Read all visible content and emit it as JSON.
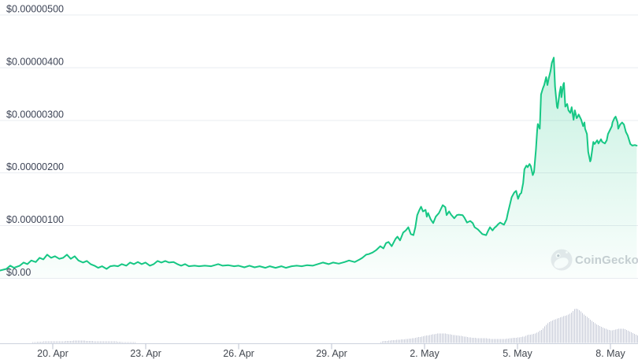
{
  "chart_data": {
    "type": "area",
    "title": "",
    "currency": "USD",
    "price_unit": "micro-USD (value x 1e-6 USD)",
    "legend": "none",
    "grid": "horizontal only",
    "watermark": "CoinGecko",
    "y_axis": {
      "range_micro_usd": [
        0,
        5.28
      ],
      "ticks": [
        {
          "label": "$0.00000500",
          "value": 5.0
        },
        {
          "label": "$0.00000400",
          "value": 4.0
        },
        {
          "label": "$0.00000300",
          "value": 3.0
        },
        {
          "label": "$0.00000200",
          "value": 2.0
        },
        {
          "label": "$0.00000100",
          "value": 1.0
        },
        {
          "label": "$0.00",
          "value": 0.0
        }
      ]
    },
    "x_axis": {
      "note": "t = fraction of visible time window (approx 18 Apr to 9 May)",
      "ticks": [
        {
          "label": "20. Apr",
          "t": 0.0827
        },
        {
          "label": "23. Apr",
          "t": 0.2284
        },
        {
          "label": "26. Apr",
          "t": 0.3741
        },
        {
          "label": "29. Apr",
          "t": 0.5198
        },
        {
          "label": "2. May",
          "t": 0.6654
        },
        {
          "label": "5. May",
          "t": 0.8111
        },
        {
          "label": "8. May",
          "t": 0.9568
        }
      ]
    },
    "series": [
      {
        "name": "Price",
        "type": "line+area",
        "color": "#16c784",
        "points_t_priceMicroUsd": [
          [
            0,
            0.15
          ],
          [
            0.01,
            0.18
          ],
          [
            0.016,
            0.24
          ],
          [
            0.022,
            0.2
          ],
          [
            0.031,
            0.24
          ],
          [
            0.037,
            0.3
          ],
          [
            0.043,
            0.27
          ],
          [
            0.049,
            0.34
          ],
          [
            0.056,
            0.31
          ],
          [
            0.062,
            0.39
          ],
          [
            0.068,
            0.36
          ],
          [
            0.074,
            0.45
          ],
          [
            0.08,
            0.39
          ],
          [
            0.086,
            0.42
          ],
          [
            0.093,
            0.37
          ],
          [
            0.099,
            0.39
          ],
          [
            0.105,
            0.45
          ],
          [
            0.111,
            0.37
          ],
          [
            0.117,
            0.42
          ],
          [
            0.123,
            0.34
          ],
          [
            0.13,
            0.3
          ],
          [
            0.136,
            0.33
          ],
          [
            0.142,
            0.27
          ],
          [
            0.148,
            0.24
          ],
          [
            0.154,
            0.2
          ],
          [
            0.16,
            0.23
          ],
          [
            0.167,
            0.18
          ],
          [
            0.173,
            0.23
          ],
          [
            0.179,
            0.24
          ],
          [
            0.185,
            0.23
          ],
          [
            0.191,
            0.27
          ],
          [
            0.198,
            0.24
          ],
          [
            0.204,
            0.3
          ],
          [
            0.21,
            0.27
          ],
          [
            0.216,
            0.31
          ],
          [
            0.222,
            0.27
          ],
          [
            0.228,
            0.3
          ],
          [
            0.235,
            0.24
          ],
          [
            0.241,
            0.27
          ],
          [
            0.247,
            0.33
          ],
          [
            0.253,
            0.3
          ],
          [
            0.259,
            0.33
          ],
          [
            0.265,
            0.3
          ],
          [
            0.272,
            0.31
          ],
          [
            0.278,
            0.27
          ],
          [
            0.284,
            0.24
          ],
          [
            0.29,
            0.27
          ],
          [
            0.296,
            0.23
          ],
          [
            0.305,
            0.24
          ],
          [
            0.312,
            0.23
          ],
          [
            0.321,
            0.24
          ],
          [
            0.331,
            0.23
          ],
          [
            0.342,
            0.27
          ],
          [
            0.349,
            0.24
          ],
          [
            0.358,
            0.25
          ],
          [
            0.367,
            0.23
          ],
          [
            0.374,
            0.24
          ],
          [
            0.383,
            0.21
          ],
          [
            0.391,
            0.24
          ],
          [
            0.399,
            0.21
          ],
          [
            0.407,
            0.23
          ],
          [
            0.416,
            0.2
          ],
          [
            0.423,
            0.23
          ],
          [
            0.432,
            0.2
          ],
          [
            0.441,
            0.23
          ],
          [
            0.448,
            0.2
          ],
          [
            0.457,
            0.23
          ],
          [
            0.465,
            0.24
          ],
          [
            0.473,
            0.23
          ],
          [
            0.481,
            0.25
          ],
          [
            0.49,
            0.24
          ],
          [
            0.498,
            0.27
          ],
          [
            0.506,
            0.3
          ],
          [
            0.515,
            0.27
          ],
          [
            0.522,
            0.3
          ],
          [
            0.531,
            0.28
          ],
          [
            0.54,
            0.31
          ],
          [
            0.547,
            0.34
          ],
          [
            0.556,
            0.31
          ],
          [
            0.564,
            0.36
          ],
          [
            0.568,
            0.39
          ],
          [
            0.574,
            0.45
          ],
          [
            0.578,
            0.46
          ],
          [
            0.584,
            0.49
          ],
          [
            0.59,
            0.54
          ],
          [
            0.596,
            0.61
          ],
          [
            0.601,
            0.57
          ],
          [
            0.605,
            0.67
          ],
          [
            0.609,
            0.69
          ],
          [
            0.614,
            0.61
          ],
          [
            0.62,
            0.75
          ],
          [
            0.623,
            0.79
          ],
          [
            0.627,
            0.72
          ],
          [
            0.632,
            0.87
          ],
          [
            0.636,
            0.91
          ],
          [
            0.64,
            0.97
          ],
          [
            0.644,
            0.84
          ],
          [
            0.648,
            0.82
          ],
          [
            0.651,
            0.97
          ],
          [
            0.654,
            1.2
          ],
          [
            0.657,
            1.29
          ],
          [
            0.66,
            1.36
          ],
          [
            0.663,
            1.27
          ],
          [
            0.667,
            1.3
          ],
          [
            0.669,
            1.17
          ],
          [
            0.671,
            1.24
          ],
          [
            0.675,
            1.12
          ],
          [
            0.679,
            1.05
          ],
          [
            0.683,
            1.17
          ],
          [
            0.688,
            1.24
          ],
          [
            0.694,
            1.39
          ],
          [
            0.698,
            1.35
          ],
          [
            0.7,
            1.2
          ],
          [
            0.704,
            1.27
          ],
          [
            0.707,
            1.21
          ],
          [
            0.712,
            1.14
          ],
          [
            0.716,
            1.2
          ],
          [
            0.719,
            1.21
          ],
          [
            0.725,
            1.2
          ],
          [
            0.728,
            1.15
          ],
          [
            0.732,
            1.06
          ],
          [
            0.737,
            1.09
          ],
          [
            0.741,
            1.05
          ],
          [
            0.744,
            0.97
          ],
          [
            0.749,
            0.93
          ],
          [
            0.756,
            0.84
          ],
          [
            0.762,
            0.82
          ],
          [
            0.765,
            0.9
          ],
          [
            0.768,
            0.97
          ],
          [
            0.772,
            0.91
          ],
          [
            0.775,
            0.96
          ],
          [
            0.778,
            0.99
          ],
          [
            0.781,
            1.03
          ],
          [
            0.784,
            1.06
          ],
          [
            0.788,
            1.03
          ],
          [
            0.79,
            1.02
          ],
          [
            0.794,
            1.12
          ],
          [
            0.796,
            1.24
          ],
          [
            0.8,
            1.44
          ],
          [
            0.802,
            1.54
          ],
          [
            0.806,
            1.63
          ],
          [
            0.809,
            1.66
          ],
          [
            0.812,
            1.51
          ],
          [
            0.815,
            1.6
          ],
          [
            0.817,
            1.62
          ],
          [
            0.82,
            1.81
          ],
          [
            0.822,
            2.07
          ],
          [
            0.825,
            2.14
          ],
          [
            0.827,
            2.11
          ],
          [
            0.83,
            2.17
          ],
          [
            0.832,
            2.13
          ],
          [
            0.835,
            1.96
          ],
          [
            0.837,
            2.02
          ],
          [
            0.84,
            2.44
          ],
          [
            0.842,
            2.81
          ],
          [
            0.843,
            2.93
          ],
          [
            0.846,
            2.84
          ],
          [
            0.848,
            3.49
          ],
          [
            0.851,
            3.61
          ],
          [
            0.853,
            3.67
          ],
          [
            0.856,
            3.82
          ],
          [
            0.858,
            3.67
          ],
          [
            0.86,
            3.79
          ],
          [
            0.863,
            3.94
          ],
          [
            0.865,
            4.09
          ],
          [
            0.868,
            4.19
          ],
          [
            0.87,
            3.64
          ],
          [
            0.873,
            3.26
          ],
          [
            0.874,
            3.23
          ],
          [
            0.877,
            3.52
          ],
          [
            0.879,
            3.64
          ],
          [
            0.88,
            3.44
          ],
          [
            0.883,
            3.68
          ],
          [
            0.884,
            3.71
          ],
          [
            0.886,
            3.26
          ],
          [
            0.889,
            3.31
          ],
          [
            0.891,
            3.19
          ],
          [
            0.894,
            3.14
          ],
          [
            0.896,
            3.25
          ],
          [
            0.899,
            3.01
          ],
          [
            0.901,
            3.19
          ],
          [
            0.904,
            3.04
          ],
          [
            0.906,
            3.08
          ],
          [
            0.907,
            3.11
          ],
          [
            0.911,
            3.01
          ],
          [
            0.914,
            2.89
          ],
          [
            0.916,
            2.96
          ],
          [
            0.917,
            2.84
          ],
          [
            0.92,
            2.74
          ],
          [
            0.922,
            2.4
          ],
          [
            0.925,
            2.22
          ],
          [
            0.926,
            2.25
          ],
          [
            0.93,
            2.59
          ],
          [
            0.932,
            2.55
          ],
          [
            0.936,
            2.62
          ],
          [
            0.938,
            2.56
          ],
          [
            0.942,
            2.64
          ],
          [
            0.944,
            2.59
          ],
          [
            0.948,
            2.56
          ],
          [
            0.951,
            2.62
          ],
          [
            0.953,
            2.74
          ],
          [
            0.957,
            2.84
          ],
          [
            0.959,
            2.89
          ],
          [
            0.96,
            2.96
          ],
          [
            0.963,
            3.04
          ],
          [
            0.965,
            3.07
          ],
          [
            0.968,
            2.96
          ],
          [
            0.969,
            2.84
          ],
          [
            0.972,
            2.92
          ],
          [
            0.975,
            2.96
          ],
          [
            0.978,
            2.92
          ],
          [
            0.981,
            2.78
          ],
          [
            0.984,
            2.71
          ],
          [
            0.988,
            2.55
          ],
          [
            0.991,
            2.52
          ],
          [
            0.995,
            2.53
          ],
          [
            0.998,
            2.52
          ]
        ]
      }
    ],
    "volume_profile": {
      "name": "Volume",
      "color": "#c7cbd8",
      "unit": "relative height 0-1 (peak volume occurs ~7 May)",
      "points_t_rel": [
        [
          0,
          0
        ],
        [
          0.043,
          0
        ],
        [
          0.049,
          0.02
        ],
        [
          0.074,
          0.05
        ],
        [
          0.099,
          0.05
        ],
        [
          0.123,
          0.07
        ],
        [
          0.148,
          0.05
        ],
        [
          0.173,
          0.05
        ],
        [
          0.198,
          0.02
        ],
        [
          0.212,
          0.02
        ],
        [
          0.217,
          0
        ],
        [
          0.593,
          0
        ],
        [
          0.599,
          0.05
        ],
        [
          0.611,
          0.07
        ],
        [
          0.623,
          0.09
        ],
        [
          0.636,
          0.11
        ],
        [
          0.648,
          0.14
        ],
        [
          0.66,
          0.18
        ],
        [
          0.673,
          0.23
        ],
        [
          0.685,
          0.27
        ],
        [
          0.698,
          0.27
        ],
        [
          0.71,
          0.23
        ],
        [
          0.722,
          0.2
        ],
        [
          0.735,
          0.16
        ],
        [
          0.747,
          0.14
        ],
        [
          0.759,
          0.14
        ],
        [
          0.772,
          0.11
        ],
        [
          0.79,
          0.11
        ],
        [
          0.802,
          0.14
        ],
        [
          0.812,
          0.16
        ],
        [
          0.82,
          0.18
        ],
        [
          0.827,
          0.23
        ],
        [
          0.835,
          0.25
        ],
        [
          0.841,
          0.3
        ],
        [
          0.847,
          0.36
        ],
        [
          0.852,
          0.45
        ],
        [
          0.858,
          0.57
        ],
        [
          0.864,
          0.64
        ],
        [
          0.87,
          0.68
        ],
        [
          0.877,
          0.73
        ],
        [
          0.883,
          0.77
        ],
        [
          0.889,
          0.8
        ],
        [
          0.894,
          0.86
        ],
        [
          0.898,
          0.93
        ],
        [
          0.901,
          1
        ],
        [
          0.905,
          0.98
        ],
        [
          0.91,
          0.91
        ],
        [
          0.915,
          0.82
        ],
        [
          0.921,
          0.73
        ],
        [
          0.927,
          0.64
        ],
        [
          0.933,
          0.55
        ],
        [
          0.94,
          0.48
        ],
        [
          0.946,
          0.43
        ],
        [
          0.952,
          0.39
        ],
        [
          0.958,
          0.36
        ],
        [
          0.964,
          0.39
        ],
        [
          0.97,
          0.41
        ],
        [
          0.975,
          0.41
        ],
        [
          0.98,
          0.39
        ],
        [
          0.985,
          0.34
        ],
        [
          0.99,
          0.3
        ],
        [
          0.995,
          0.25
        ],
        [
          1,
          0.21
        ]
      ]
    }
  },
  "colors": {
    "background": "#ffffff",
    "line": "#16c784",
    "area_top": "rgba(22,199,132,0.26)",
    "area_bottom": "rgba(22,199,132,0.02)",
    "gridline": "#eaecf1",
    "axis_line": "#ccd2de",
    "tick": "#bcc3d1",
    "y_label": "#3d4456",
    "x_label": "#42474f",
    "volume_bar": "#c7cbd8",
    "watermark": "#cbced4",
    "logo_circle": "#e9eaee",
    "logo_detail": "#c0c5cd"
  }
}
